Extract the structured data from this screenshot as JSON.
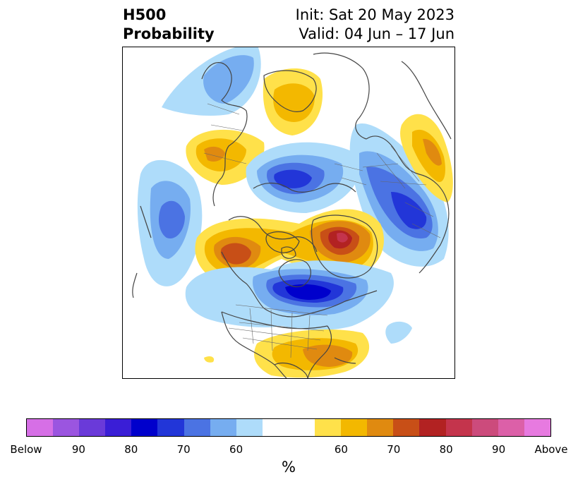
{
  "header": {
    "title_line1": "H500",
    "title_line2": "Probability",
    "init": "Init: Sat 20 May 2023",
    "valid": "Valid: 04 Jun – 17 Jun"
  },
  "legend": {
    "colors": [
      "#d66fe6",
      "#9b55e0",
      "#6a3ad9",
      "#3a1ed6",
      "#0000cc",
      "#2236d8",
      "#4b73e3",
      "#76adf0",
      "#aedcfa",
      "#ffffff",
      "#ffffff",
      "#ffe14a",
      "#f3b800",
      "#e08a10",
      "#c84f17",
      "#b22222",
      "#c4344c",
      "#cc4b7c",
      "#dc60a8",
      "#e77ae0"
    ],
    "tick_labels": [
      "Below",
      "90",
      "80",
      "70",
      "60",
      "60",
      "70",
      "80",
      "90",
      "Above"
    ],
    "unit": "%"
  }
}
